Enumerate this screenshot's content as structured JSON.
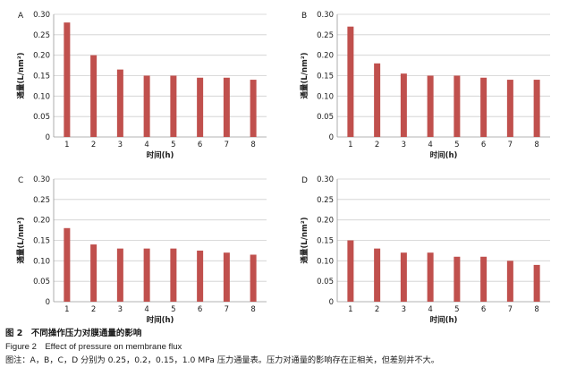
{
  "chart_data": [
    {
      "type": "bar",
      "panel": "A",
      "categories": [
        "1",
        "2",
        "3",
        "4",
        "5",
        "6",
        "7",
        "8"
      ],
      "values": [
        0.28,
        0.2,
        0.165,
        0.15,
        0.15,
        0.145,
        0.145,
        0.14
      ],
      "xlabel": "时间(h)",
      "ylabel": "通量(L/nm²)",
      "ylim": [
        0,
        0.3
      ],
      "yticks": [
        "0",
        "0.05",
        "0.10",
        "0.15",
        "0.20",
        "0.25",
        "0.30"
      ],
      "grid": true,
      "color": "#c0504d"
    },
    {
      "type": "bar",
      "panel": "B",
      "categories": [
        "1",
        "2",
        "3",
        "4",
        "5",
        "6",
        "7",
        "8"
      ],
      "values": [
        0.27,
        0.18,
        0.155,
        0.15,
        0.15,
        0.145,
        0.14,
        0.14
      ],
      "xlabel": "时间(h)",
      "ylabel": "通量(L/nm²)",
      "ylim": [
        0,
        0.3
      ],
      "yticks": [
        "0",
        "0.05",
        "0.10",
        "0.15",
        "0.20",
        "0.25",
        "0.30"
      ],
      "grid": true,
      "color": "#c0504d"
    },
    {
      "type": "bar",
      "panel": "C",
      "categories": [
        "1",
        "2",
        "3",
        "4",
        "5",
        "6",
        "7",
        "8"
      ],
      "values": [
        0.18,
        0.14,
        0.13,
        0.13,
        0.13,
        0.125,
        0.12,
        0.115
      ],
      "xlabel": "时间(h)",
      "ylabel": "通量(L/nm²)",
      "ylim": [
        0,
        0.3
      ],
      "yticks": [
        "0",
        "0.05",
        "0.10",
        "0.15",
        "0.20",
        "0.25",
        "0.30"
      ],
      "grid": true,
      "color": "#c0504d"
    },
    {
      "type": "bar",
      "panel": "D",
      "categories": [
        "1",
        "2",
        "3",
        "4",
        "5",
        "6",
        "7",
        "8"
      ],
      "values": [
        0.15,
        0.13,
        0.12,
        0.12,
        0.11,
        0.11,
        0.1,
        0.09
      ],
      "xlabel": "时间(h)",
      "ylabel": "通量(L/nm²)",
      "ylim": [
        0,
        0.3
      ],
      "yticks": [
        "0",
        "0.05",
        "0.10",
        "0.15",
        "0.20",
        "0.25",
        "0.30"
      ],
      "grid": true,
      "color": "#c0504d"
    }
  ],
  "caption": {
    "title": "图 2　不同操作压力对膜通量的影响",
    "english": "Figure 2　Effect of pressure on membrane flux",
    "note": "图注：A，B，C，D 分别为 0.25，0.2，0.15，1.0 MPa 压力通量表。压力对通量的影响存在正相关，但差别并不大。"
  }
}
